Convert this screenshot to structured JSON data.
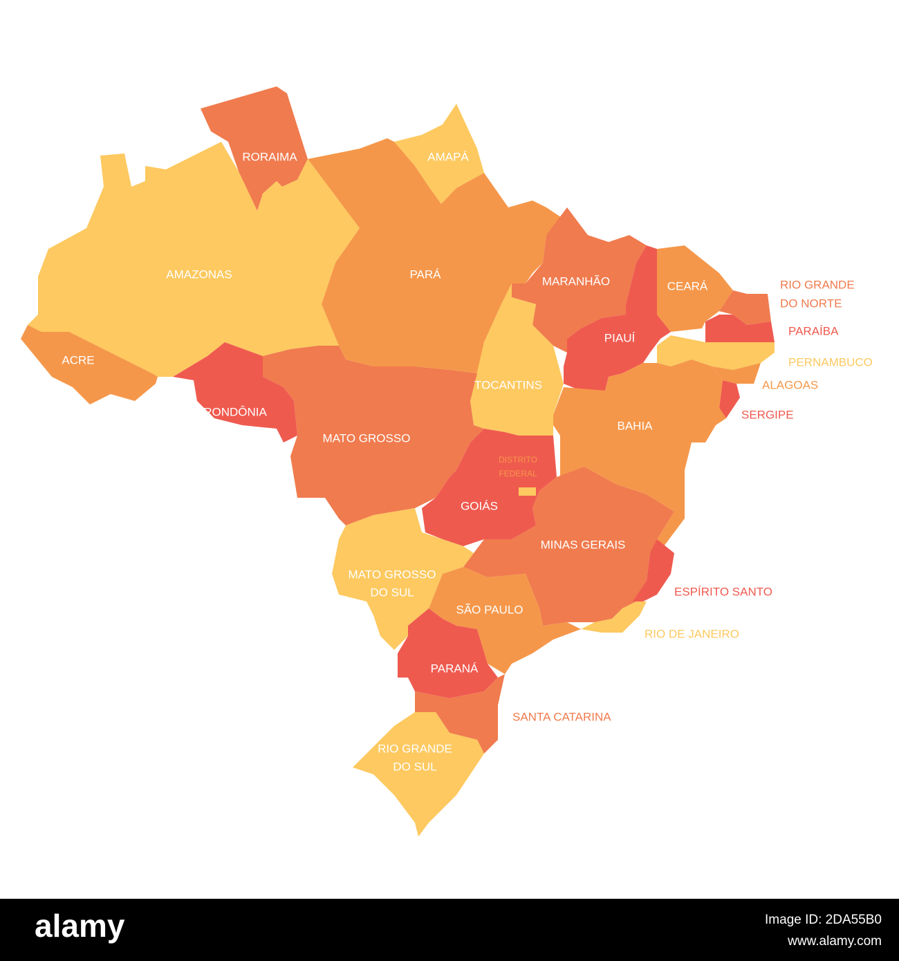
{
  "states": [
    {
      "label": "RORAIMA"
    },
    {
      "label": "AMAPÁ"
    },
    {
      "label": "AMAZONAS"
    },
    {
      "label": "PARÁ"
    },
    {
      "label": "MARANHÃO"
    },
    {
      "label": "CEARÁ"
    },
    {
      "label": [
        "RIO GRANDE",
        "DO NORTE"
      ]
    },
    {
      "label": "PIAUÍ"
    },
    {
      "label": "PARAÍBA"
    },
    {
      "label": "ACRE"
    },
    {
      "label": "PERNAMBUCO"
    },
    {
      "label": "ALAGOAS"
    },
    {
      "label": "TOCANTINS"
    },
    {
      "label": "RONDÔNIA"
    },
    {
      "label": "SERGIPE"
    },
    {
      "label": "BAHIA"
    },
    {
      "label": "MATO GROSSO"
    },
    {
      "label": [
        "DISTRITO",
        "FEDERAL"
      ]
    },
    {
      "label": "GOIÁS"
    },
    {
      "label": "MINAS GERAIS"
    },
    {
      "label": [
        "MATO GROSSO",
        "DO SUL"
      ]
    },
    {
      "label": "ESPÍRITO SANTO"
    },
    {
      "label": "SÃO PAULO"
    },
    {
      "label": "RIO DE JANEIRO"
    },
    {
      "label": "PARANÁ"
    },
    {
      "label": "SANTA CATARINA"
    },
    {
      "label": [
        "RIO GRANDE",
        "DO SUL"
      ]
    }
  ],
  "footer": {
    "brand": "alamy",
    "image_id": "Image ID: 2DA55B0",
    "url": "www.alamy.com"
  }
}
